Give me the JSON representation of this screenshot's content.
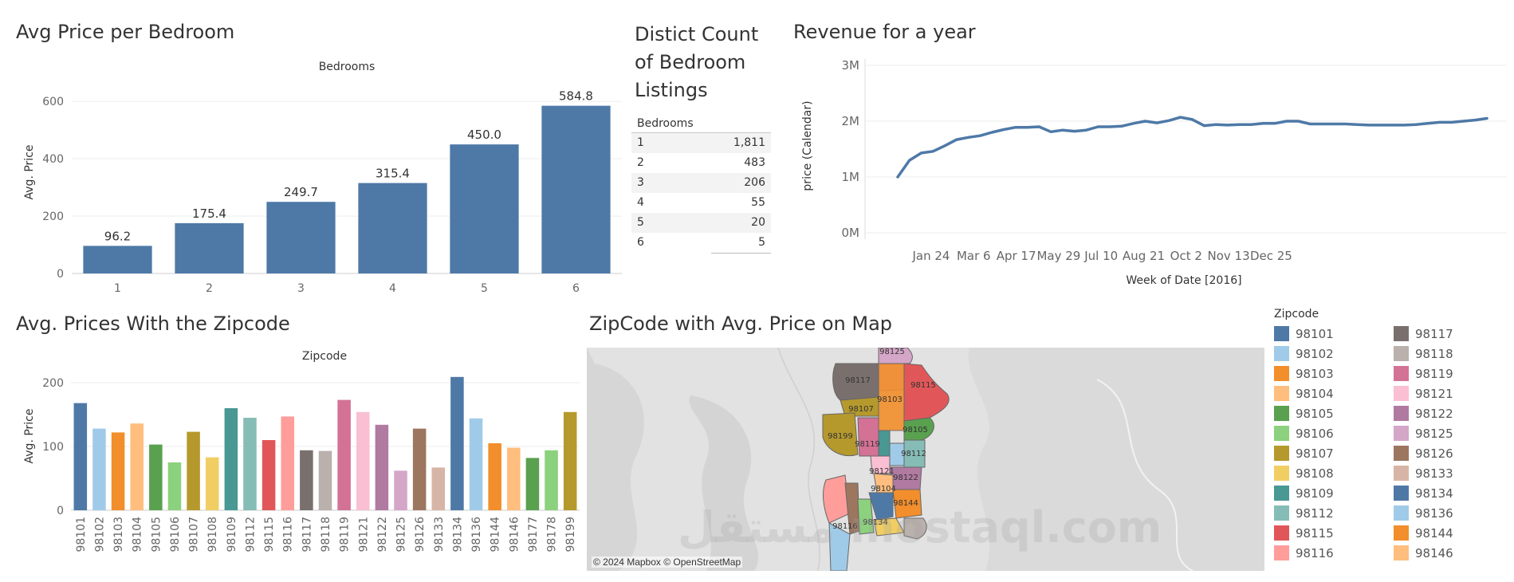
{
  "bedroom_chart": {
    "title": "Avg Price per Bedroom",
    "header": "Bedrooms",
    "ylabel": "Avg. Price"
  },
  "distinct_table": {
    "title_lines": [
      "Distict Count",
      "of Bedroom",
      "Listings"
    ],
    "column_header": "Bedrooms",
    "rows": [
      {
        "bedrooms": "1",
        "count": "1,811"
      },
      {
        "bedrooms": "2",
        "count": "483"
      },
      {
        "bedrooms": "3",
        "count": "206"
      },
      {
        "bedrooms": "4",
        "count": "55"
      },
      {
        "bedrooms": "5",
        "count": "20"
      },
      {
        "bedrooms": "6",
        "count": "5"
      }
    ]
  },
  "revenue_chart": {
    "title": "Revenue for a year",
    "ylabel": "price (Calendar)",
    "xlabel": "Week of Date [2016]"
  },
  "zipcode_chart": {
    "title": "Avg. Prices With the Zipcode",
    "header": "Zipcode",
    "ylabel": "Avg. Price"
  },
  "map": {
    "title": "ZipCode with Avg. Price on Map",
    "attribution": "© 2024 Mapbox © OpenStreetMap",
    "labels": [
      "98125",
      "98117",
      "98103",
      "98115",
      "98107",
      "98105",
      "98199",
      "98119",
      "98112",
      "98121",
      "98122",
      "98104",
      "98144",
      "98116",
      "98134"
    ]
  },
  "legend": {
    "title": "Zipcode",
    "items": [
      {
        "zip": "98101",
        "color": "#4e79a7"
      },
      {
        "zip": "98102",
        "color": "#a0cbe8"
      },
      {
        "zip": "98103",
        "color": "#f28e2b"
      },
      {
        "zip": "98104",
        "color": "#ffbe7d"
      },
      {
        "zip": "98105",
        "color": "#59a14f"
      },
      {
        "zip": "98106",
        "color": "#8cd17d"
      },
      {
        "zip": "98107",
        "color": "#b6992d"
      },
      {
        "zip": "98108",
        "color": "#f1ce63"
      },
      {
        "zip": "98109",
        "color": "#499894"
      },
      {
        "zip": "98112",
        "color": "#86bcb6"
      },
      {
        "zip": "98115",
        "color": "#e15759"
      },
      {
        "zip": "98116",
        "color": "#ff9d9a"
      },
      {
        "zip": "98117",
        "color": "#79706e"
      },
      {
        "zip": "98118",
        "color": "#bab0ac"
      },
      {
        "zip": "98119",
        "color": "#d37295"
      },
      {
        "zip": "98121",
        "color": "#fabfd2"
      },
      {
        "zip": "98122",
        "color": "#b07aa1"
      },
      {
        "zip": "98125",
        "color": "#d4a6c8"
      },
      {
        "zip": "98126",
        "color": "#9d7660"
      },
      {
        "zip": "98133",
        "color": "#d7b5a6"
      },
      {
        "zip": "98134",
        "color": "#4e79a7"
      },
      {
        "zip": "98136",
        "color": "#a0cbe8"
      },
      {
        "zip": "98144",
        "color": "#f28e2b"
      },
      {
        "zip": "98146",
        "color": "#ffbe7d"
      }
    ]
  },
  "watermark": "مستقل mostaql.com",
  "chart_data": [
    {
      "type": "bar",
      "title": "Avg Price per Bedroom",
      "categories": [
        "1",
        "2",
        "3",
        "4",
        "5",
        "6"
      ],
      "values": [
        96.2,
        175.4,
        249.7,
        315.4,
        450.0,
        584.8
      ],
      "labels": [
        "96.2",
        "175.4",
        "249.7",
        "315.4",
        "450.0",
        "584.8"
      ],
      "yticks": [
        "0",
        "200",
        "400",
        "600"
      ],
      "ylim": [
        0,
        620
      ],
      "color": "#4e79a7"
    },
    {
      "type": "line",
      "title": "Revenue for a year",
      "yticks": [
        "0M",
        "1M",
        "2M",
        "3M"
      ],
      "ylim": [
        0,
        3000000
      ],
      "xticks": [
        "Jan 24",
        "Mar 6",
        "Apr 17",
        "May 29",
        "Jul 10",
        "Aug 21",
        "Oct 2",
        "Nov 13",
        "Dec 25"
      ],
      "x_weeks": [
        0,
        1,
        2,
        3,
        4,
        5,
        6,
        7,
        8,
        9,
        10,
        11,
        12,
        13,
        14,
        15,
        16,
        17,
        18,
        19,
        20,
        21,
        22,
        23,
        24,
        25,
        26,
        27,
        28,
        29,
        30,
        31,
        32,
        33,
        34,
        35,
        36,
        37,
        38,
        39,
        40,
        41,
        42,
        43,
        44,
        45,
        46,
        47,
        48,
        49,
        50
      ],
      "values": [
        1000000,
        1300000,
        1430000,
        1460000,
        1560000,
        1670000,
        1710000,
        1740000,
        1800000,
        1850000,
        1890000,
        1890000,
        1900000,
        1810000,
        1840000,
        1820000,
        1840000,
        1900000,
        1900000,
        1910000,
        1960000,
        2000000,
        1970000,
        2010000,
        2070000,
        2030000,
        1920000,
        1940000,
        1930000,
        1940000,
        1940000,
        1960000,
        1960000,
        2000000,
        2000000,
        1950000,
        1950000,
        1950000,
        1950000,
        1940000,
        1930000,
        1930000,
        1930000,
        1930000,
        1940000,
        1960000,
        1980000,
        1980000,
        2000000,
        2020000,
        2050000
      ],
      "color": "#4e79a7"
    },
    {
      "type": "bar",
      "title": "Avg. Prices With the Zipcode",
      "categories": [
        "98101",
        "98102",
        "98103",
        "98104",
        "98105",
        "98106",
        "98107",
        "98108",
        "98109",
        "98112",
        "98115",
        "98116",
        "98117",
        "98118",
        "98119",
        "98121",
        "98122",
        "98125",
        "98126",
        "98133",
        "98134",
        "98136",
        "98144",
        "98146",
        "98177",
        "98178",
        "98199"
      ],
      "values": [
        168,
        128,
        122,
        136,
        103,
        75,
        123,
        83,
        160,
        145,
        110,
        147,
        94,
        93,
        173,
        154,
        134,
        62,
        128,
        67,
        209,
        144,
        105,
        98,
        82,
        94,
        154
      ],
      "colors": [
        "#4e79a7",
        "#a0cbe8",
        "#f28e2b",
        "#ffbe7d",
        "#59a14f",
        "#8cd17d",
        "#b6992d",
        "#f1ce63",
        "#499894",
        "#86bcb6",
        "#e15759",
        "#ff9d9a",
        "#79706e",
        "#bab0ac",
        "#d37295",
        "#fabfd2",
        "#b07aa1",
        "#d4a6c8",
        "#9d7660",
        "#d7b5a6",
        "#4e79a7",
        "#a0cbe8",
        "#f28e2b",
        "#ffbe7d",
        "#59a14f",
        "#8cd17d",
        "#b6992d"
      ],
      "yticks": [
        "0",
        "100",
        "200"
      ],
      "ylim": [
        0,
        220
      ]
    }
  ]
}
